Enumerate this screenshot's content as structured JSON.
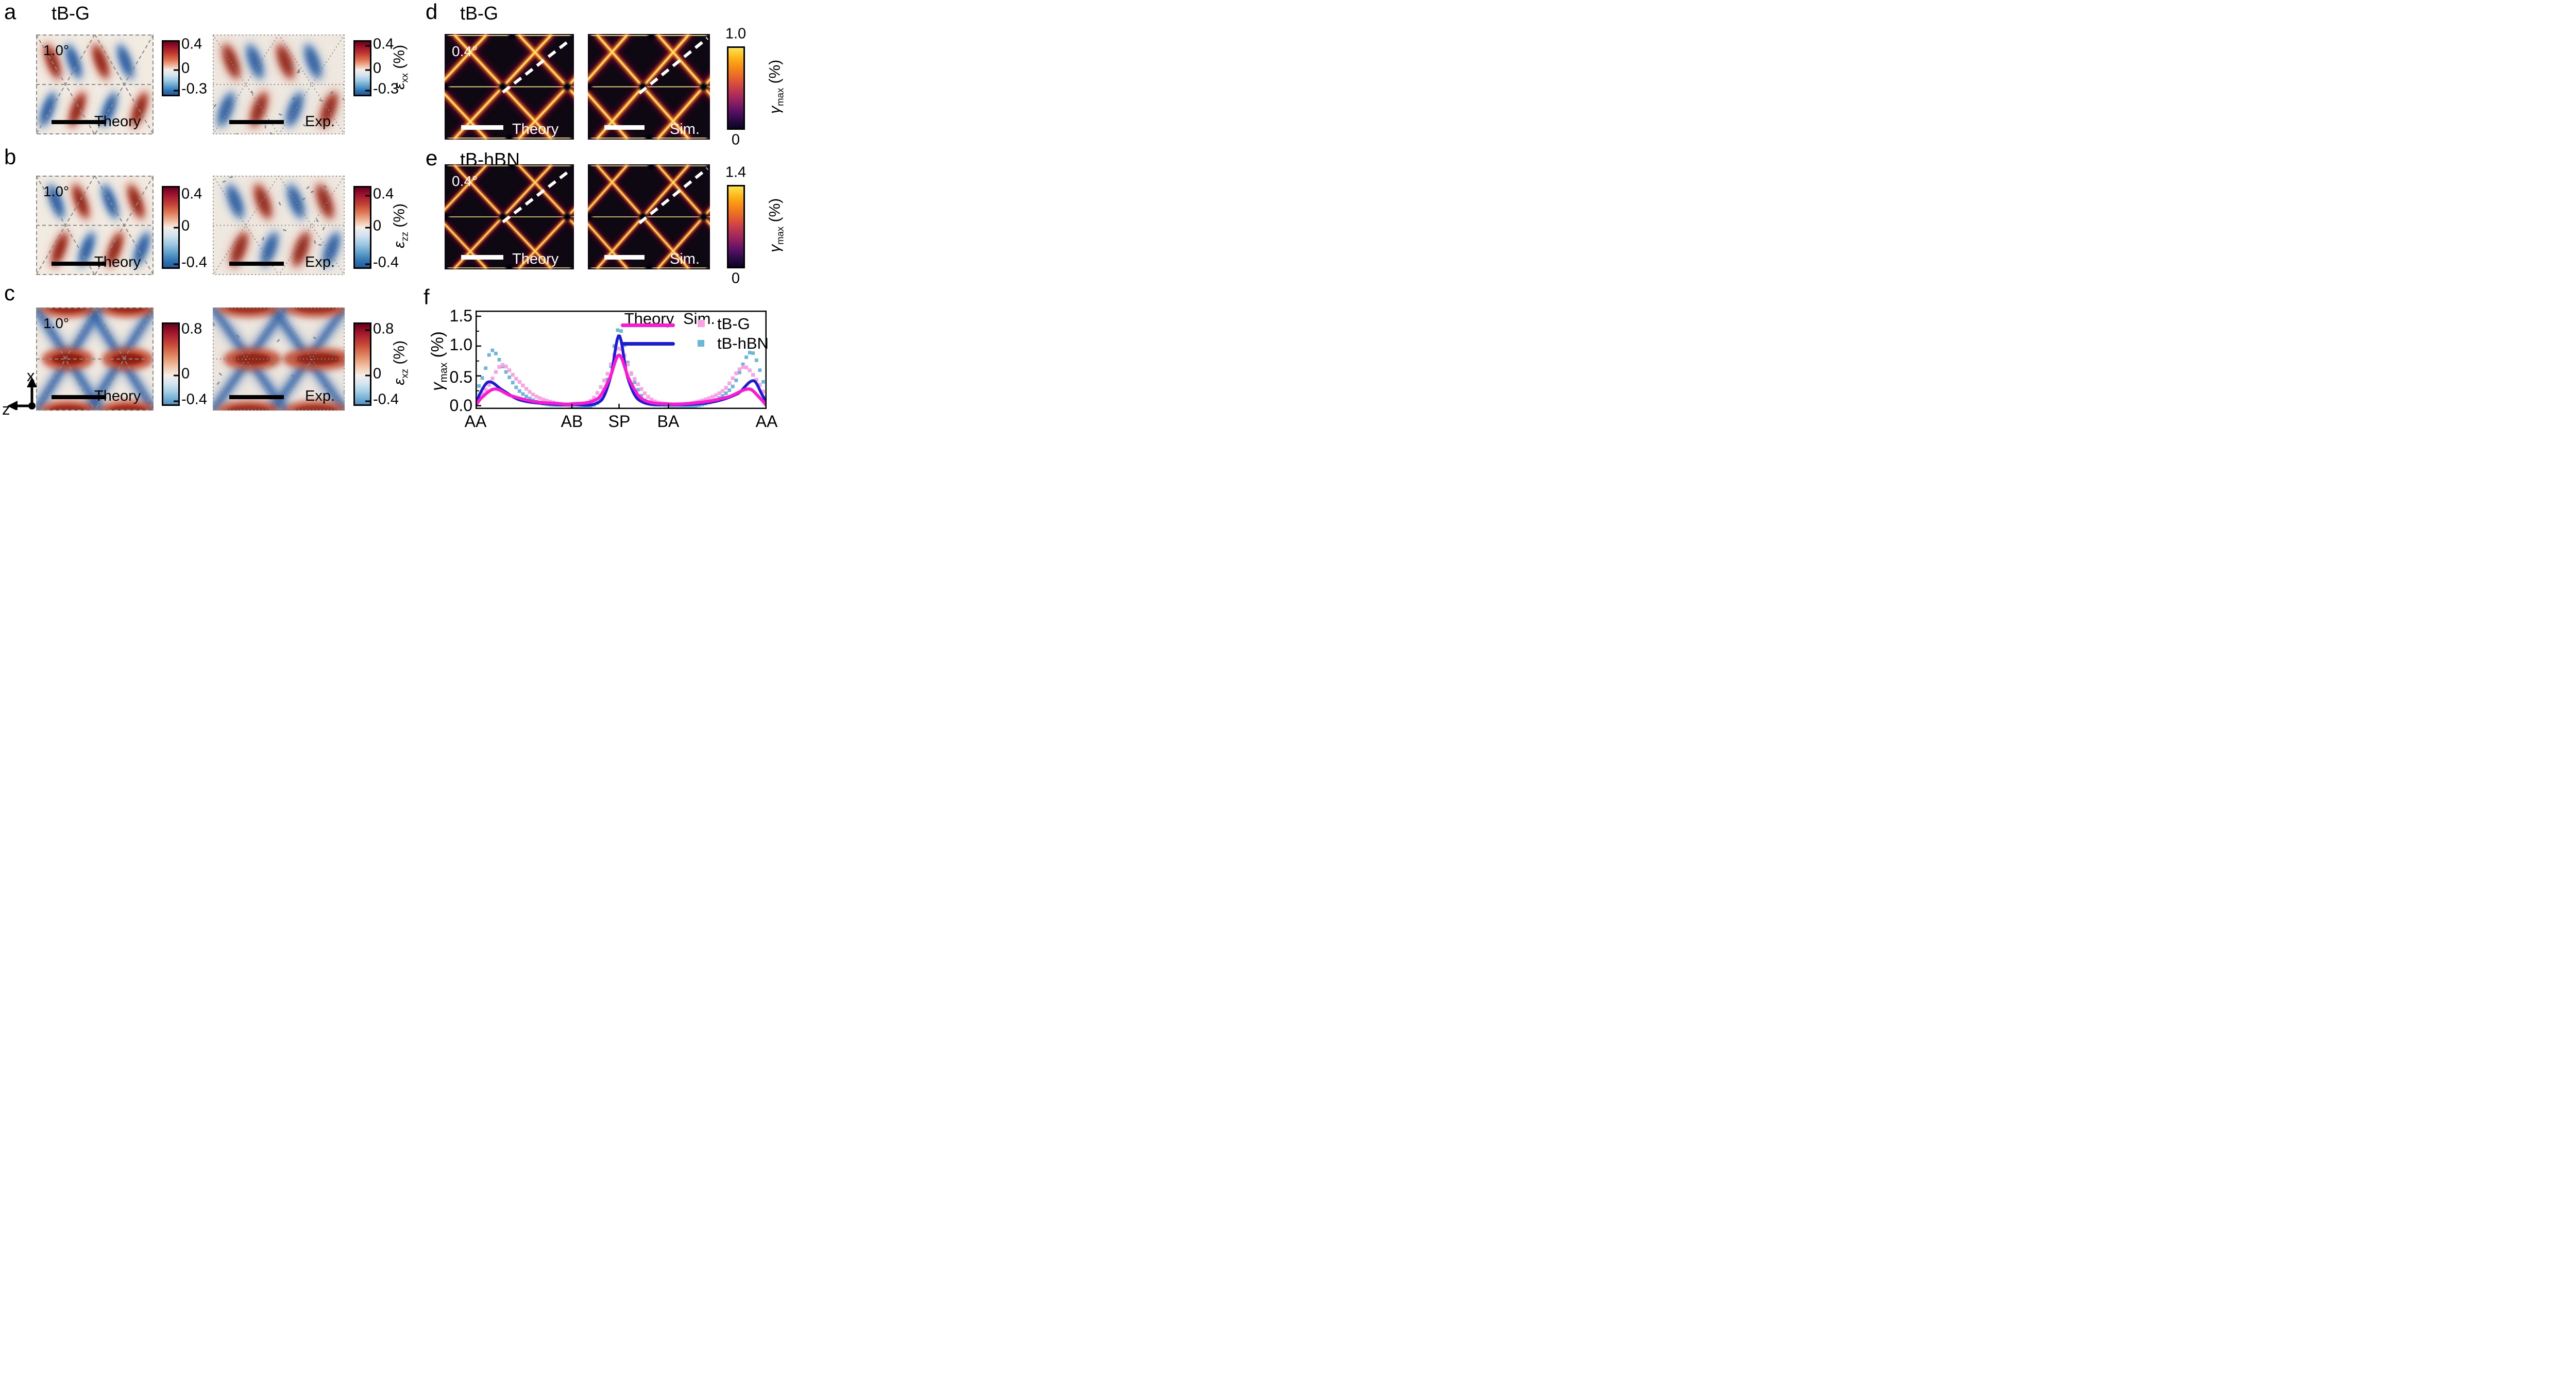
{
  "panels": {
    "a": {
      "letter": "a",
      "title": "tB-G",
      "angle": "1.0°",
      "map1_label": "Theory",
      "map2_label": "Exp.",
      "cb1_ticks": [
        "0.4",
        "0",
        "-0.3"
      ],
      "cb2_ticks": [
        "0.4",
        "0",
        "-0.3"
      ],
      "cb2_label": {
        "sym": "ε",
        "sub": "xx",
        "unit": " (%)"
      }
    },
    "b": {
      "letter": "b",
      "angle": "1.0°",
      "map1_label": "Theory",
      "map2_label": "Exp.",
      "cb1_ticks": [
        "0.4",
        "0",
        "-0.4"
      ],
      "cb2_ticks": [
        "0.4",
        "0",
        "-0.4"
      ],
      "cb2_label": {
        "sym": "ε",
        "sub": "zz",
        "unit": " (%)"
      }
    },
    "c": {
      "letter": "c",
      "angle": "1.0°",
      "map1_label": "Theory",
      "map2_label": "Exp.",
      "cb1_ticks": [
        "0.8",
        "0",
        "-0.4"
      ],
      "cb2_ticks": [
        "0.8",
        "0",
        "-0.4"
      ],
      "cb2_label": {
        "sym": "ε",
        "sub": "xz",
        "unit": " (%)"
      }
    },
    "d": {
      "letter": "d",
      "title": "tB-G",
      "angle": "0.4°",
      "map1_label": "Theory",
      "map2_label": "Sim.",
      "cb_top": "1.0",
      "cb_bottom": "0",
      "cb_label": {
        "sym": "γ",
        "sub": "max",
        "unit": " (%)"
      }
    },
    "e": {
      "letter": "e",
      "title": "tB-hBN",
      "angle": "0.4°",
      "map1_label": "Theory",
      "map2_label": "Sim.",
      "cb_top": "1.4",
      "cb_bottom": "0",
      "cb_label": {
        "sym": "γ",
        "sub": "max",
        "unit": " (%)"
      }
    },
    "f": {
      "letter": "f"
    }
  },
  "axes_icon": {
    "x": "x",
    "z": "z"
  },
  "chart_data": {
    "type": "line",
    "x_tick_labels": [
      "AA",
      "AB",
      "SP",
      "BA",
      "AA"
    ],
    "x_tick_positions": [
      0,
      0.331,
      0.493,
      0.663,
      1
    ],
    "ylabel_parts": {
      "sym": "γ",
      "sub": "max",
      "unit": " (%)"
    },
    "ytick_labels": [
      "1.5",
      "1.0",
      "0.5",
      "0.0"
    ],
    "yticks": [
      1.5,
      1.0,
      0.5,
      0.0
    ],
    "ylim": [
      0,
      1.6
    ],
    "grid": false,
    "legend": {
      "col1": "Theory",
      "col2": "Sim.",
      "rows": [
        "tB-G",
        "tB-hBN"
      ],
      "position": "top-right"
    },
    "series": [
      {
        "name": "tB-G-theory",
        "style": "line",
        "color": "#ff17d2",
        "points": [
          [
            0,
            0
          ],
          [
            0.02,
            0.13
          ],
          [
            0.065,
            0.28
          ],
          [
            0.12,
            0.17
          ],
          [
            0.2,
            0.07
          ],
          [
            0.27,
            0.04
          ],
          [
            0.33,
            0.03
          ],
          [
            0.42,
            0.12
          ],
          [
            0.46,
            0.45
          ],
          [
            0.493,
            0.85
          ],
          [
            0.527,
            0.45
          ],
          [
            0.57,
            0.12
          ],
          [
            0.66,
            0.03
          ],
          [
            0.78,
            0.06
          ],
          [
            0.87,
            0.15
          ],
          [
            0.94,
            0.28
          ],
          [
            0.975,
            0.14
          ],
          [
            1,
            0
          ]
        ]
      },
      {
        "name": "tB-hBN-theory",
        "style": "line",
        "color": "#1b1cd8",
        "points": [
          [
            0,
            0
          ],
          [
            0.015,
            0.2
          ],
          [
            0.045,
            0.4
          ],
          [
            0.09,
            0.27
          ],
          [
            0.15,
            0.1
          ],
          [
            0.25,
            0.03
          ],
          [
            0.33,
            0.02
          ],
          [
            0.43,
            0.08
          ],
          [
            0.465,
            0.5
          ],
          [
            0.493,
            1.18
          ],
          [
            0.521,
            0.5
          ],
          [
            0.56,
            0.1
          ],
          [
            0.66,
            0.02
          ],
          [
            0.8,
            0.05
          ],
          [
            0.9,
            0.2
          ],
          [
            0.955,
            0.42
          ],
          [
            0.985,
            0.18
          ],
          [
            1,
            0.04
          ]
        ]
      },
      {
        "name": "tB-G-sim",
        "style": "scatter",
        "color": "#f9a3e4",
        "points": [
          [
            0,
            0.08
          ],
          [
            0.04,
            0.3
          ],
          [
            0.09,
            0.68
          ],
          [
            0.14,
            0.45
          ],
          [
            0.2,
            0.18
          ],
          [
            0.27,
            0.05
          ],
          [
            0.33,
            0.01
          ],
          [
            0.4,
            0.1
          ],
          [
            0.45,
            0.5
          ],
          [
            0.493,
            0.97
          ],
          [
            0.54,
            0.5
          ],
          [
            0.6,
            0.12
          ],
          [
            0.67,
            0.02
          ],
          [
            0.75,
            0.05
          ],
          [
            0.85,
            0.25
          ],
          [
            0.92,
            0.65
          ],
          [
            0.97,
            0.4
          ],
          [
            1,
            0.12
          ]
        ]
      },
      {
        "name": "tB-hBN-sim",
        "style": "scatter",
        "color": "#69b8dc",
        "points": [
          [
            0,
            0.2
          ],
          [
            0.03,
            0.55
          ],
          [
            0.055,
            0.93
          ],
          [
            0.1,
            0.6
          ],
          [
            0.15,
            0.25
          ],
          [
            0.22,
            0.05
          ],
          [
            0.3,
            0.01
          ],
          [
            0.42,
            0.05
          ],
          [
            0.46,
            0.55
          ],
          [
            0.493,
            1.3
          ],
          [
            0.53,
            0.6
          ],
          [
            0.58,
            0.1
          ],
          [
            0.64,
            0.01
          ],
          [
            0.78,
            0.02
          ],
          [
            0.88,
            0.3
          ],
          [
            0.945,
            0.9
          ],
          [
            0.98,
            0.55
          ],
          [
            1,
            0.15
          ]
        ]
      }
    ]
  }
}
